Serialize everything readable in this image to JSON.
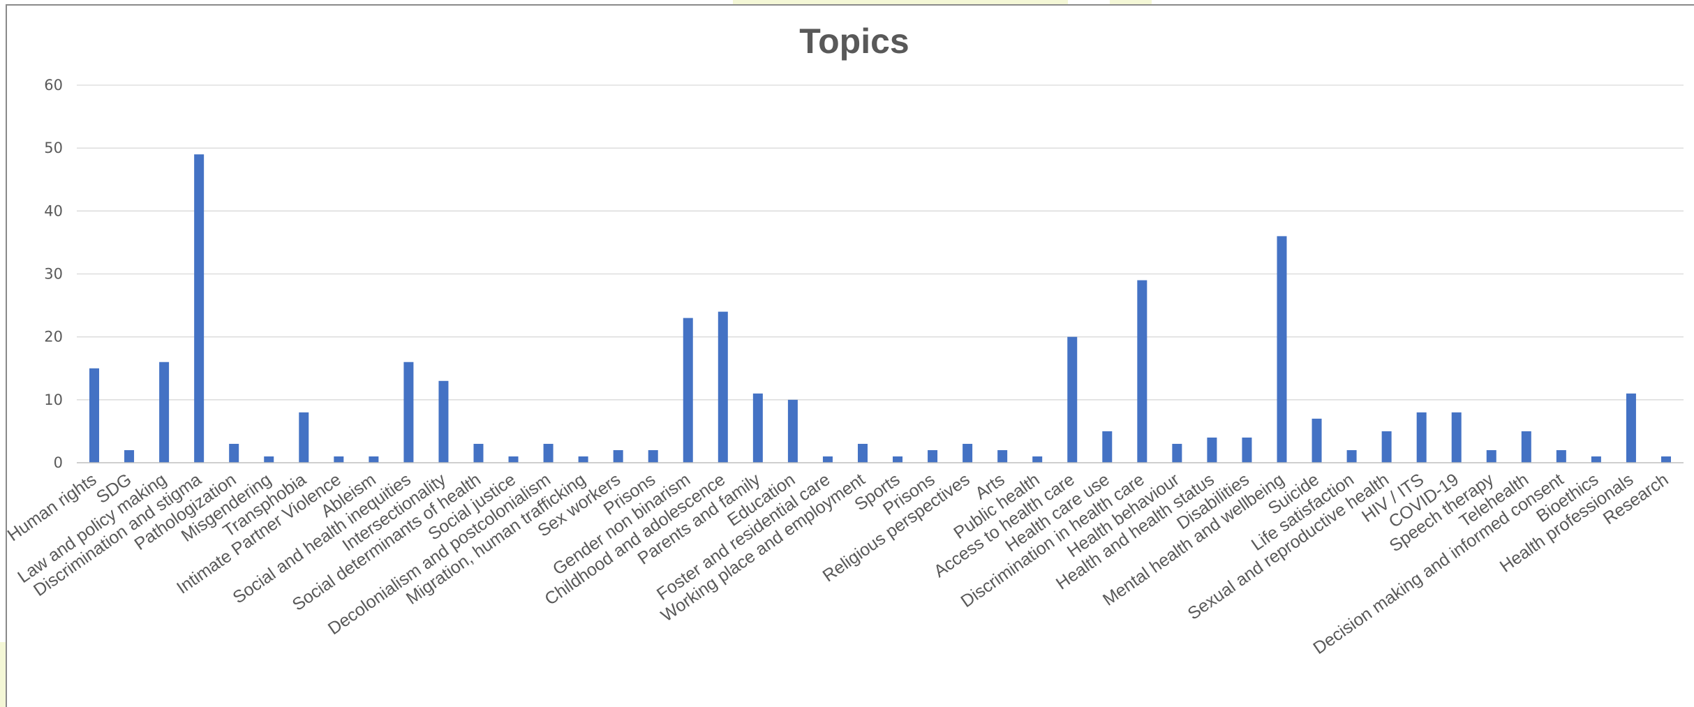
{
  "chart_data": {
    "type": "bar",
    "title": "Topics",
    "xlabel": "",
    "ylabel": "",
    "ylim": [
      0,
      60
    ],
    "yticks": [
      0,
      10,
      20,
      30,
      40,
      50,
      60
    ],
    "grid": true,
    "legend": "none",
    "bar_color": "#4472c4",
    "categories": [
      "Human rights",
      "SDG",
      "Law and policy making",
      "Discrimination and stigma",
      "Pathologization",
      "Misgendering",
      "Transphobia",
      "Intimate Partner Violence",
      "Ableism",
      "Social and health inequities",
      "Intersectionality",
      "Social determinants of health",
      "Social justice",
      "Decolonialism and postcolonialism",
      "Migration, human trafficking",
      "Sex workers",
      "Prisons",
      "Gender non binarism",
      "Childhood and adolescence",
      "Parents and family",
      "Education",
      "Foster and residential care",
      "Working place and employment",
      "Sports",
      "Prisons",
      "Religious perspectives",
      "Arts",
      "Public health",
      "Access to health care",
      "Health care use",
      "Discrimination in health care",
      "Health behaviour",
      "Health and health status",
      "Disabilities",
      "Mental health and wellbeing",
      "Suicide",
      "Life satisfaction",
      "Sexual and reproductive health",
      "HIV / ITS",
      "COVID-19",
      "Speech therapy",
      "Telehealth",
      "Decision making and informed consent",
      "Bioethics",
      "Health professionals",
      "Research"
    ],
    "values": [
      15,
      2,
      16,
      49,
      3,
      1,
      8,
      1,
      1,
      16,
      13,
      3,
      1,
      3,
      1,
      2,
      2,
      23,
      24,
      11,
      10,
      1,
      3,
      1,
      2,
      3,
      2,
      1,
      20,
      5,
      29,
      3,
      4,
      4,
      36,
      7,
      2,
      5,
      8,
      8,
      2,
      5,
      2,
      1,
      11,
      1
    ]
  }
}
